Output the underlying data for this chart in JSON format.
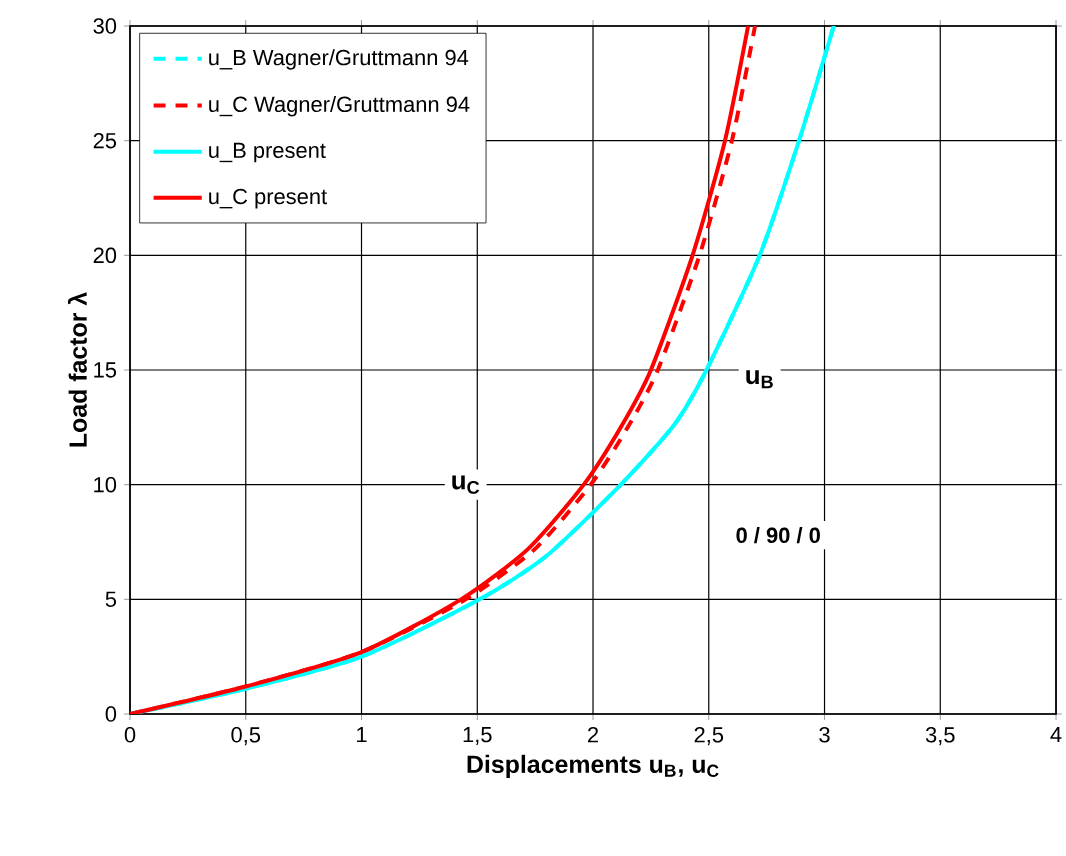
{
  "chart_data": {
    "type": "line",
    "xlabel": "Displacements u$_{B}$, u$_{C}$",
    "ylabel": "Load factor  λ",
    "xlim": [
      0,
      4
    ],
    "ylim": [
      0,
      30
    ],
    "xticks": [
      0,
      {
        "value": 0.5,
        "label": "0,5"
      },
      1,
      {
        "value": 1.5,
        "label": "1,5"
      },
      2,
      {
        "value": 2.5,
        "label": "2,5"
      },
      3,
      {
        "value": 3.5,
        "label": "3,5"
      },
      4
    ],
    "yticks": [
      0,
      5,
      10,
      15,
      20,
      25,
      30
    ],
    "grid": true,
    "legend": "top left",
    "marker": "none",
    "series": [
      {
        "name": "u_B Wagner/Gruttmann 94",
        "color": "#00ffff",
        "line_style": "dashed",
        "x": [
          0,
          0.5,
          1.0,
          1.51,
          1.8,
          2.12,
          2.35,
          2.49,
          2.72,
          2.89,
          3.04
        ],
        "values": [
          0,
          1.1,
          2.5,
          5,
          6.9,
          10,
          12.6,
          15,
          20,
          25,
          30
        ]
      },
      {
        "name": "u_C Wagner/Gruttmann 94",
        "color": "#ff0000",
        "line_style": "dashed",
        "x": [
          0,
          0.5,
          1.0,
          1.45,
          1.75,
          1.99,
          2.15,
          2.28,
          2.46,
          2.6,
          2.7
        ],
        "values": [
          0,
          1.2,
          2.7,
          5,
          7.2,
          10,
          12.5,
          15,
          20,
          25,
          30
        ]
      },
      {
        "name": "u_B present",
        "color": "#00ffff",
        "line_style": "solid",
        "x": [
          0,
          0.5,
          1.0,
          1.51,
          1.8,
          2.12,
          2.35,
          2.49,
          2.72,
          2.89,
          3.04
        ],
        "values": [
          0,
          1.1,
          2.5,
          5,
          6.9,
          10,
          12.6,
          15,
          20,
          25,
          30
        ]
      },
      {
        "name": "u_C present",
        "color": "#ff0000",
        "line_style": "solid",
        "x": [
          0,
          0.5,
          1.0,
          1.43,
          1.72,
          1.96,
          2.12,
          2.25,
          2.43,
          2.57,
          2.67
        ],
        "values": [
          0,
          1.2,
          2.7,
          5,
          7.2,
          10,
          12.5,
          15,
          20,
          25,
          30
        ]
      }
    ],
    "annotations": [
      {
        "text": "u$_{C}$",
        "x": 1.45,
        "y": 10
      },
      {
        "text": "u$_{B}$",
        "x": 2.72,
        "y": 14.6
      },
      "0 / 90 / 0"
    ]
  }
}
